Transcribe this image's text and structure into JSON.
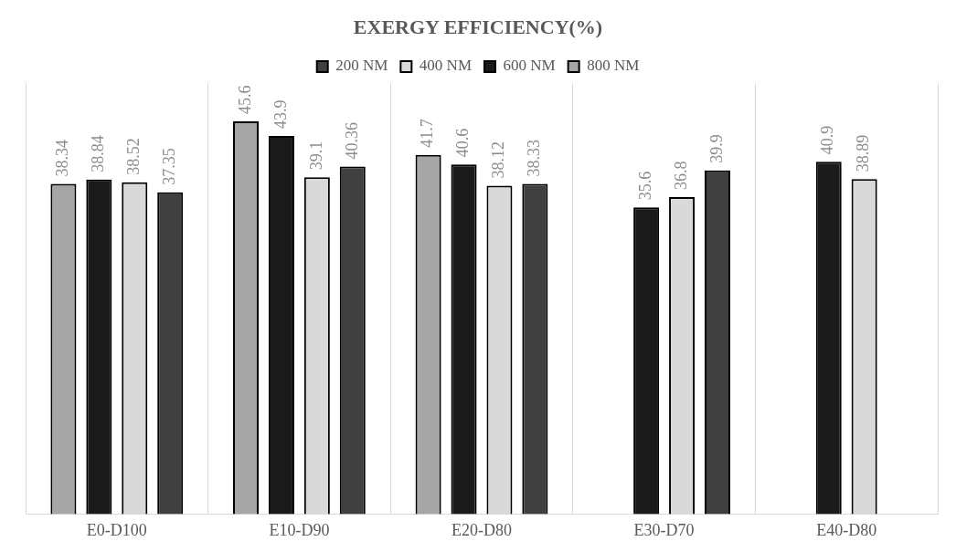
{
  "chart_data": {
    "type": "bar",
    "title": "EXERGY EFFICIENCY(%)",
    "categories": [
      "E0-D100",
      "E10-D90",
      "E20-D80",
      "E30-D70",
      "E40-D80"
    ],
    "series": [
      {
        "name": "200 NM",
        "color": "#404040",
        "values": [
          37.35,
          40.36,
          38.33,
          39.9,
          null
        ]
      },
      {
        "name": "400 NM",
        "color": "#d9d9d9",
        "values": [
          38.52,
          39.1,
          38.12,
          36.8,
          38.89
        ]
      },
      {
        "name": "600 NM",
        "color": "#1a1a1a",
        "values": [
          38.84,
          43.9,
          40.6,
          35.6,
          40.9
        ]
      },
      {
        "name": "800 NM",
        "color": "#a6a6a6",
        "values": [
          38.34,
          45.6,
          41.7,
          null,
          null
        ]
      }
    ],
    "data_labels": true,
    "grid": "x",
    "legend": "top"
  }
}
